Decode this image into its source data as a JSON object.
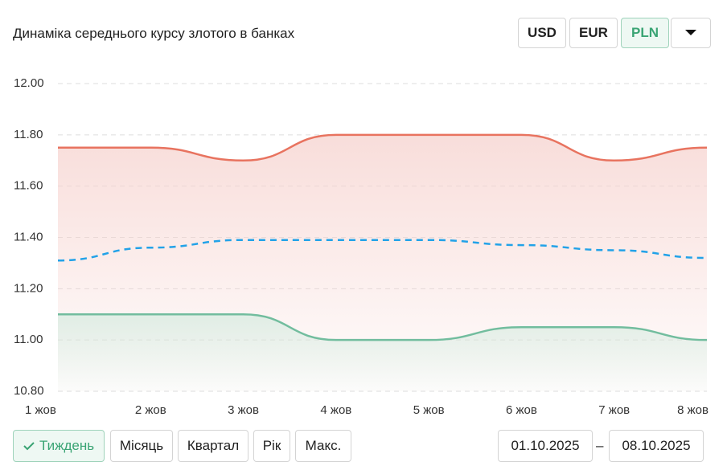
{
  "header": {
    "title": "Динаміка середнього курсу злотого в банках",
    "currencies": [
      "USD",
      "EUR",
      "PLN"
    ],
    "active_currency": 2
  },
  "chart_data": {
    "type": "line",
    "categories": [
      "1 жов",
      "2 жов",
      "3 жов",
      "4 жов",
      "5 жов",
      "6 жов",
      "7 жов",
      "8 жов"
    ],
    "series": [
      {
        "color": "#e8735f",
        "values": [
          11.75,
          11.75,
          11.7,
          11.8,
          11.8,
          11.8,
          11.7,
          11.75
        ],
        "area": true,
        "dashed": false
      },
      {
        "color": "#22a2e8",
        "values": [
          11.31,
          11.36,
          11.39,
          11.39,
          11.39,
          11.37,
          11.35,
          11.32
        ],
        "area": false,
        "dashed": true
      },
      {
        "color": "#72bd9e",
        "values": [
          11.1,
          11.1,
          11.1,
          11.0,
          11.0,
          11.05,
          11.05,
          11.0
        ],
        "area": true,
        "dashed": false
      }
    ],
    "ylim": [
      10.8,
      12.0
    ],
    "yticks": [
      {
        "value": 10.8,
        "label": "10.80"
      },
      {
        "value": 11.0,
        "label": "11.00"
      },
      {
        "value": 11.2,
        "label": "11.20"
      },
      {
        "value": 11.4,
        "label": "11.40"
      },
      {
        "value": 11.6,
        "label": "11.60"
      },
      {
        "value": 11.8,
        "label": "11.80"
      },
      {
        "value": 12.0,
        "label": "12.00"
      }
    ],
    "grid": true
  },
  "footer": {
    "periods": [
      "Тиждень",
      "Місяць",
      "Квартал",
      "Рік",
      "Макс."
    ],
    "active_period": 0,
    "date_from": "01.10.2025",
    "separator": "–",
    "date_to": "08.10.2025"
  }
}
